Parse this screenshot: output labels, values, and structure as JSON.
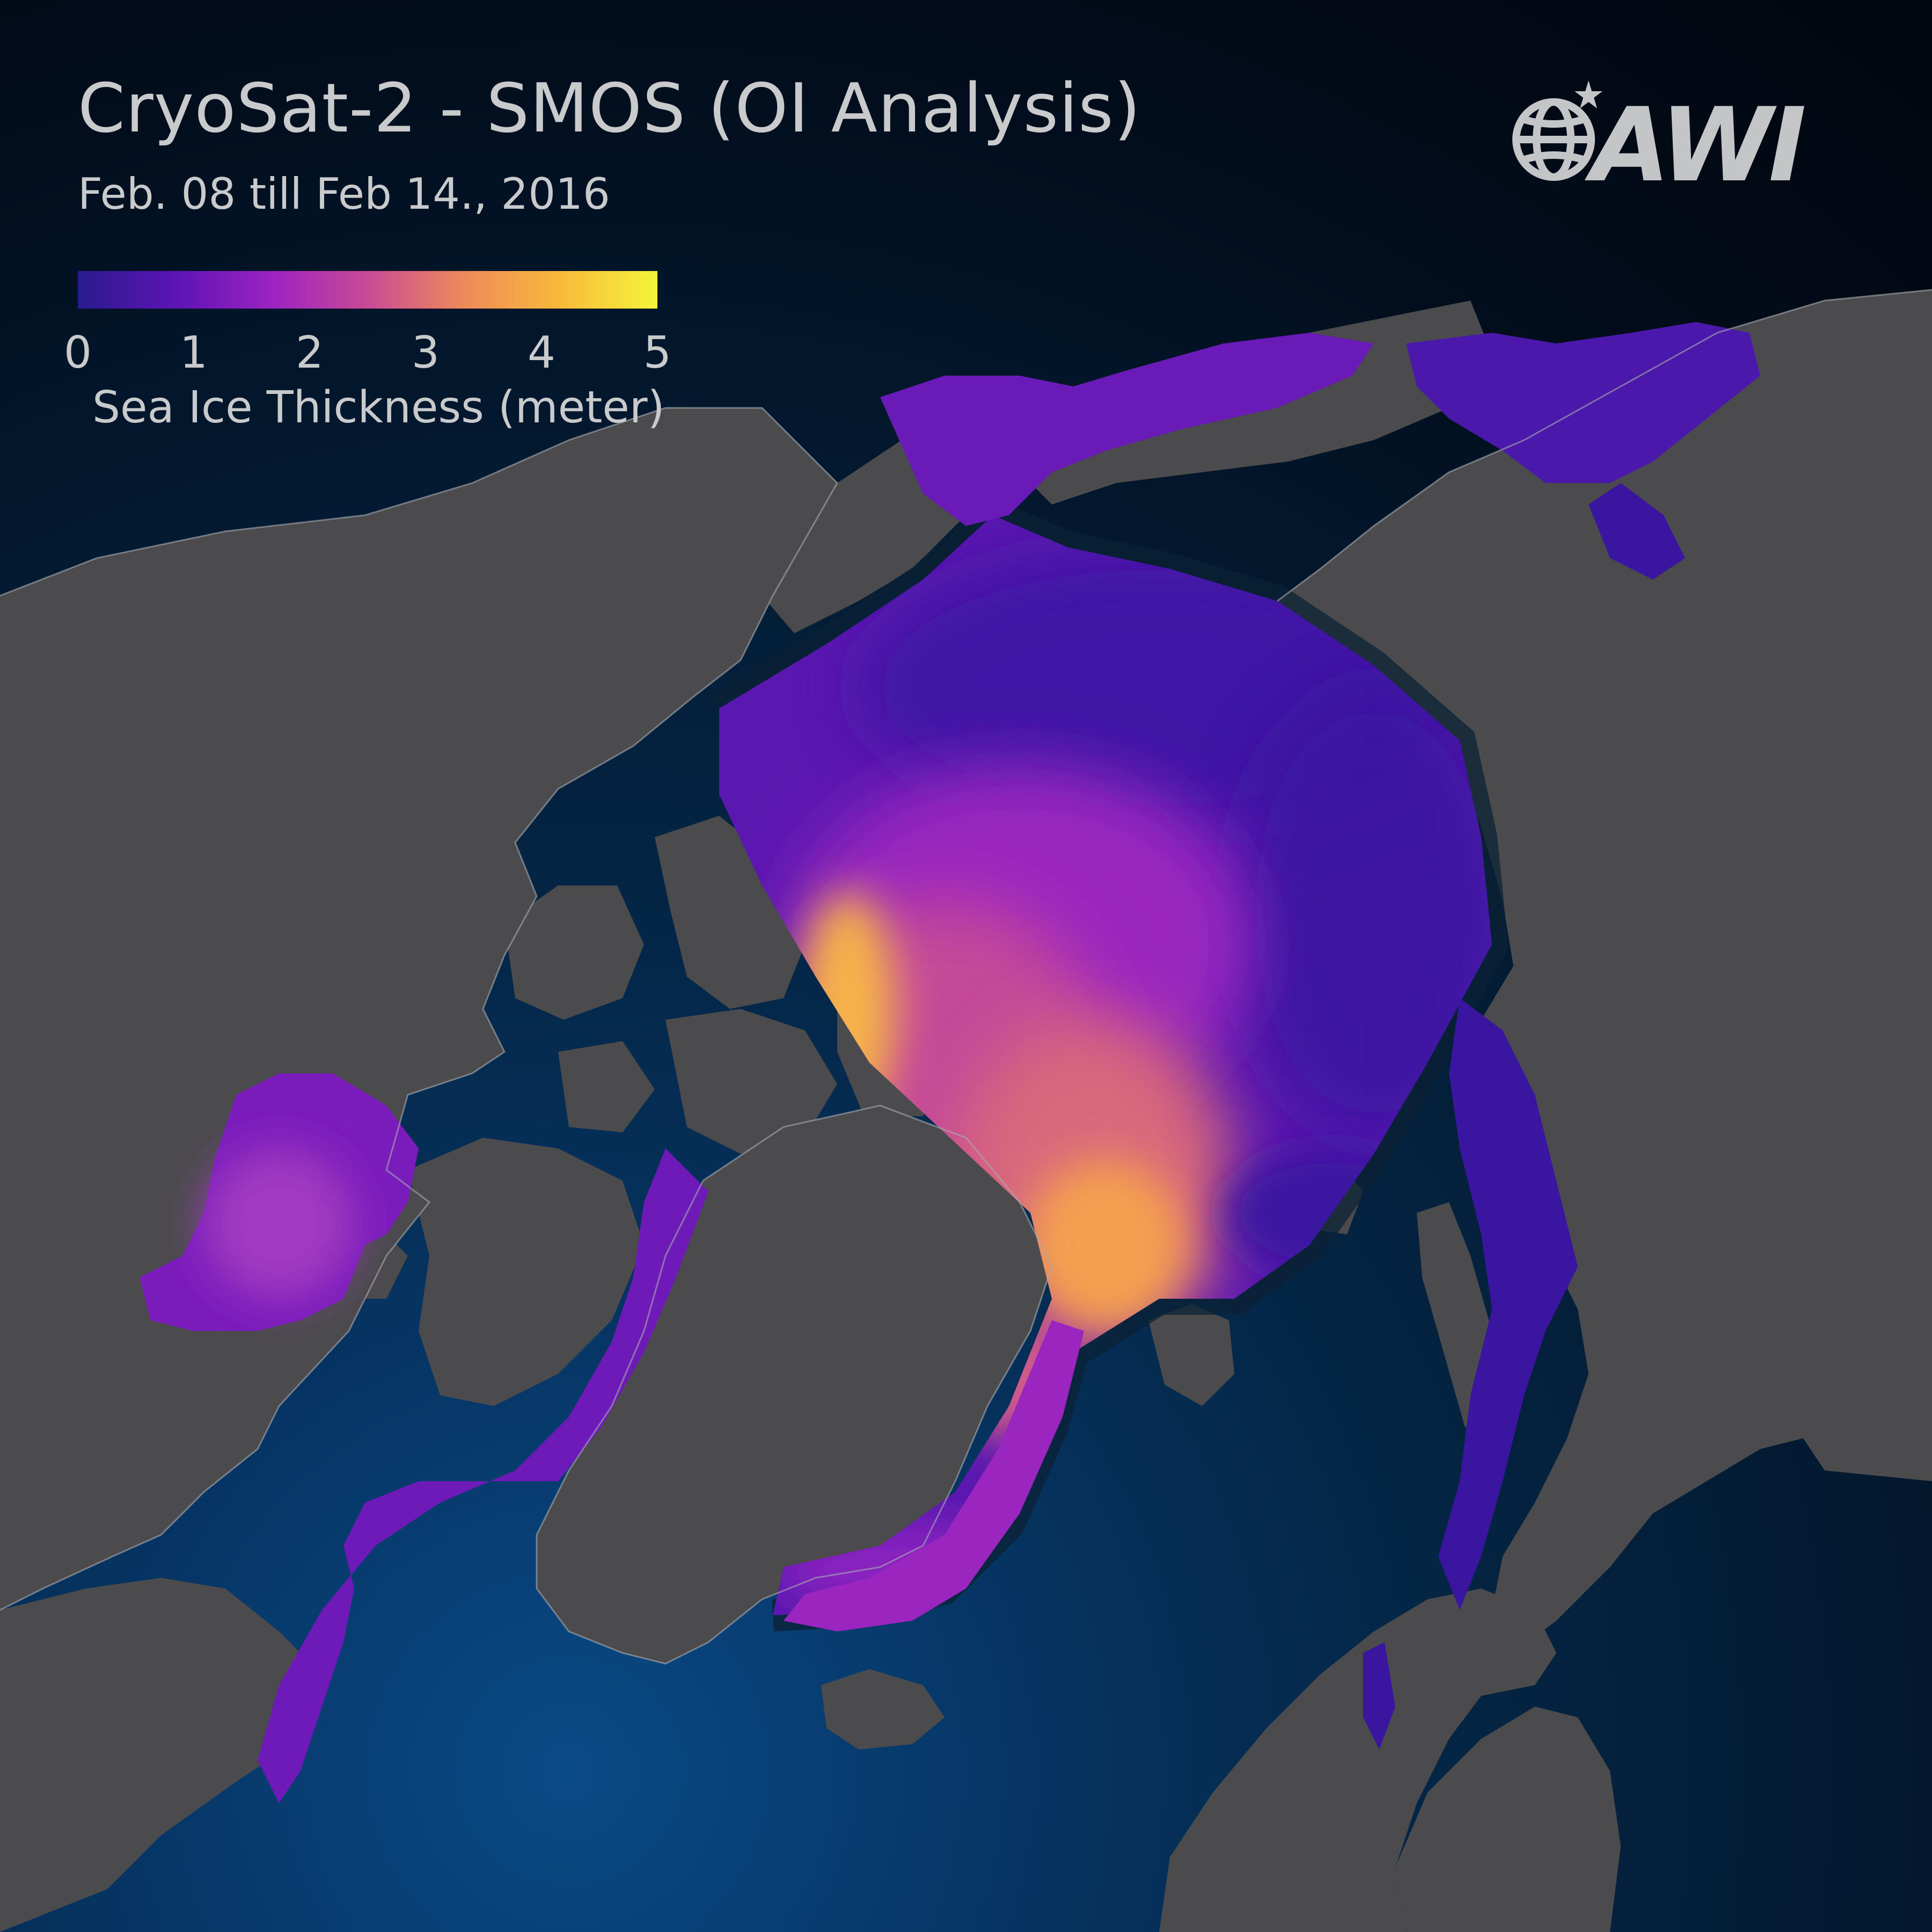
{
  "header": {
    "title": "CryoSat-2 - SMOS (OI Analysis)",
    "subtitle": "Feb. 08 till Feb 14., 2016"
  },
  "legend": {
    "ticks": [
      "0",
      "1",
      "2",
      "3",
      "4",
      "5"
    ],
    "label": "Sea Ice Thickness (meter)",
    "range": [
      0,
      5
    ],
    "colors": [
      "#2a1a8e",
      "#5c14b4",
      "#9b23c1",
      "#c94a96",
      "#ee8a5a",
      "#f8ba3a",
      "#f3f53a"
    ]
  },
  "logo": {
    "text": "AWI"
  },
  "map": {
    "colors": {
      "land": "#4b4b4d",
      "coast": "#a9aab0",
      "ocean_deep": "#020d1c",
      "ocean_bright": "#0a4a86",
      "ice_thin": "#3a16a0",
      "ice_mid": "#8a1fc0",
      "ice_thick": "#ee8a5a",
      "ice_thickest": "#f9c04a"
    }
  }
}
